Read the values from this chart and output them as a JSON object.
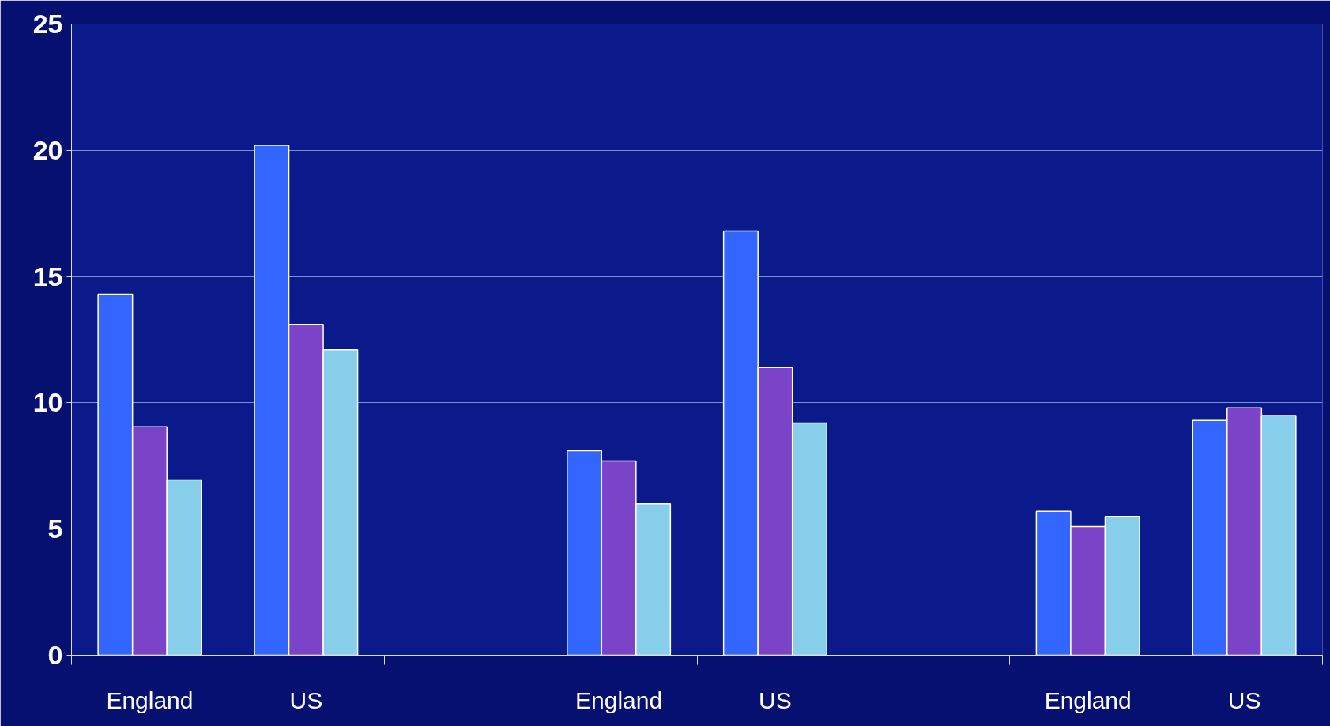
{
  "chart_data": {
    "type": "bar",
    "categories": [
      "England",
      "US",
      null,
      "England",
      "US",
      null,
      "England",
      "US"
    ],
    "series": [
      {
        "color": "#3366ff",
        "values": [
          14.3,
          20.2,
          null,
          8.1,
          16.8,
          null,
          5.7,
          9.3
        ]
      },
      {
        "color": "#7b44c8",
        "values": [
          9.05,
          13.1,
          null,
          7.7,
          11.4,
          null,
          5.1,
          9.8
        ]
      },
      {
        "color": "#87ceeb",
        "values": [
          6.95,
          12.1,
          null,
          6.0,
          9.2,
          null,
          5.5,
          9.5
        ]
      }
    ],
    "ylim": [
      0,
      25
    ],
    "yticks": [
      0,
      5,
      10,
      15,
      20,
      25
    ],
    "grid": "y"
  }
}
